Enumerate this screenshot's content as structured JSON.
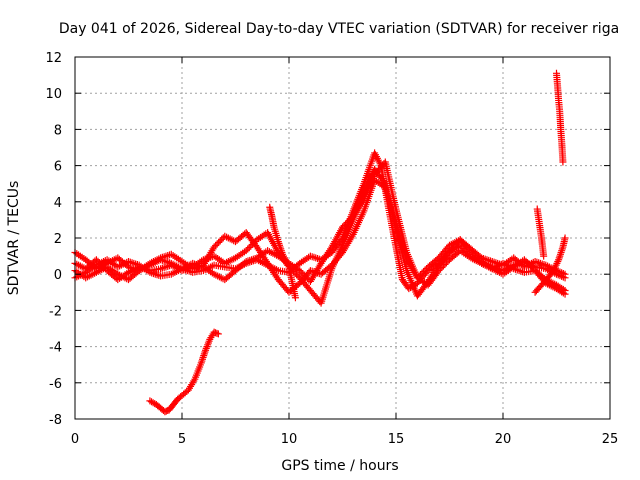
{
  "chart_data": {
    "type": "scatter",
    "title": "Day 041 of 2026, Sidereal Day-to-day VTEC variation (SDTVAR) for receiver riga",
    "xlabel": "GPS time / hours",
    "ylabel": "SDTVAR / TECUs",
    "xlim": [
      0,
      25
    ],
    "ylim": [
      -8,
      12
    ],
    "xticks": [
      0,
      5,
      10,
      15,
      20,
      25
    ],
    "yticks": [
      -8,
      -6,
      -4,
      -2,
      0,
      2,
      4,
      6,
      8,
      10,
      12
    ],
    "xtick_labels": [
      "0",
      "5",
      "10",
      "15",
      "20",
      "25"
    ],
    "ytick_labels": [
      "-8",
      "-6",
      "-4",
      "-2",
      "0",
      "2",
      "4",
      "6",
      "8",
      "10",
      "12"
    ],
    "grid": true,
    "marker": "plus",
    "color": "#ff0000",
    "series": [
      {
        "name": "track-1",
        "x": [
          0.0,
          0.5,
          1.0,
          1.5,
          2.0,
          2.5,
          3.0,
          3.5,
          4.0,
          4.5,
          5.0,
          5.5,
          6.0,
          6.5,
          7.0,
          7.5,
          8.0,
          8.5,
          9.0,
          9.5,
          10.0,
          10.5,
          11.0,
          11.5,
          12.0,
          12.5,
          13.0,
          13.5,
          14.0,
          14.3,
          14.6,
          15.0,
          15.3,
          15.6,
          16.0,
          16.5,
          17.0,
          17.5,
          18.0,
          18.5,
          19.0,
          19.5,
          20.0,
          20.5,
          21.0,
          21.5,
          22.0,
          22.5,
          22.9
        ],
        "y": [
          1.2,
          0.8,
          0.3,
          0.6,
          0.9,
          0.4,
          0.2,
          0.5,
          0.8,
          0.6,
          0.3,
          0.1,
          0.2,
          0.5,
          0.4,
          0.3,
          0.6,
          0.8,
          0.5,
          0.2,
          0.1,
          0.6,
          1.0,
          0.8,
          1.2,
          2.0,
          3.5,
          5.0,
          6.7,
          6.0,
          4.0,
          1.5,
          -0.3,
          -0.8,
          -0.5,
          0.2,
          0.6,
          1.2,
          1.9,
          1.3,
          0.7,
          0.4,
          0.2,
          0.5,
          0.7,
          0.4,
          0.3,
          0.0,
          -0.2
        ]
      },
      {
        "name": "track-2",
        "x": [
          0.0,
          0.5,
          1.0,
          1.5,
          2.0,
          2.5,
          3.0,
          3.5,
          4.0,
          4.5,
          5.0,
          5.5,
          6.0,
          6.5,
          7.0,
          7.5,
          8.0,
          8.5,
          9.0,
          9.5,
          10.0,
          10.5,
          11.0,
          11.5,
          12.0,
          12.5,
          13.0,
          13.5,
          14.0,
          14.5,
          15.0,
          15.5,
          16.0,
          16.5,
          17.0,
          17.5,
          18.0,
          18.5,
          19.0,
          19.5,
          20.0,
          20.5,
          21.0,
          21.5,
          22.0,
          22.5,
          22.9
        ],
        "y": [
          0.2,
          -0.2,
          0.1,
          0.4,
          0.0,
          -0.3,
          0.2,
          0.6,
          0.9,
          1.1,
          0.7,
          0.3,
          0.5,
          1.5,
          2.1,
          1.8,
          2.3,
          1.5,
          0.6,
          -0.3,
          -1.0,
          -0.5,
          0.2,
          0.0,
          0.5,
          1.2,
          2.2,
          3.5,
          5.2,
          4.8,
          2.5,
          0.2,
          -1.2,
          -0.4,
          0.5,
          1.2,
          1.6,
          1.0,
          0.6,
          0.3,
          0.0,
          0.4,
          0.8,
          0.2,
          -0.3,
          -0.6,
          -0.9
        ]
      },
      {
        "name": "track-3",
        "x": [
          0.0,
          0.5,
          1.0,
          1.5,
          2.0,
          2.5,
          3.0,
          3.5,
          4.0,
          4.5,
          5.0,
          5.5,
          6.0,
          6.5,
          7.0,
          7.5,
          8.0,
          8.5,
          9.0,
          9.5,
          10.0,
          10.5,
          11.0,
          11.5,
          12.0,
          12.5,
          13.0,
          13.5,
          14.0,
          14.5,
          15.0,
          15.5,
          16.0,
          16.5,
          17.0,
          17.5,
          18.0,
          18.5,
          19.0,
          19.5,
          20.0,
          20.5,
          21.0,
          21.5,
          22.0,
          22.5,
          22.9
        ],
        "y": [
          0.6,
          0.3,
          0.8,
          0.2,
          -0.3,
          0.1,
          0.4,
          0.2,
          0.3,
          0.5,
          0.2,
          0.4,
          0.8,
          1.0,
          0.6,
          0.9,
          1.3,
          1.9,
          2.3,
          1.2,
          0.4,
          -0.2,
          -0.9,
          -1.6,
          0.3,
          1.6,
          3.0,
          4.6,
          5.8,
          5.0,
          2.8,
          0.8,
          -0.2,
          0.4,
          0.9,
          1.6,
          1.9,
          1.4,
          0.9,
          0.7,
          0.5,
          0.9,
          0.4,
          0.7,
          0.5,
          0.2,
          0.0
        ]
      },
      {
        "name": "track-4",
        "x": [
          0.0,
          0.5,
          1.0,
          1.5,
          2.0,
          2.5,
          3.0,
          3.5,
          4.0,
          4.5,
          5.0,
          5.5,
          6.0,
          6.5,
          7.0,
          7.5,
          8.0,
          8.5,
          9.0,
          9.5,
          10.0,
          10.5,
          11.0,
          11.5,
          12.0,
          12.5,
          13.0,
          13.5,
          14.0,
          14.5,
          15.0,
          15.5,
          16.0,
          16.5,
          17.0,
          17.5,
          18.0,
          18.5,
          19.0,
          19.5,
          20.0,
          20.5,
          21.0,
          21.5,
          22.0,
          22.5,
          22.9
        ],
        "y": [
          -0.2,
          0.1,
          0.5,
          0.8,
          0.4,
          0.7,
          0.5,
          0.1,
          -0.1,
          0.0,
          0.3,
          0.6,
          0.4,
          0.0,
          -0.3,
          0.2,
          0.7,
          0.9,
          1.3,
          1.0,
          0.6,
          0.2,
          -0.4,
          0.6,
          1.5,
          2.6,
          3.2,
          4.2,
          5.5,
          6.2,
          3.6,
          1.2,
          -0.2,
          -0.6,
          0.2,
          0.8,
          1.3,
          0.9,
          0.6,
          0.3,
          0.6,
          0.3,
          0.1,
          0.2,
          -0.5,
          -0.8,
          -1.1
        ]
      },
      {
        "name": "track-5",
        "x": [
          9.1,
          9.2,
          9.3,
          9.5,
          9.7,
          10.0,
          10.3
        ],
        "y": [
          3.7,
          3.2,
          2.6,
          1.8,
          1.1,
          0.4,
          -1.3
        ]
      },
      {
        "name": "track-6",
        "x": [
          3.5,
          3.8,
          4.0,
          4.2,
          4.4,
          4.6,
          4.8,
          5.0,
          5.3,
          5.6,
          5.9,
          6.1,
          6.3,
          6.5,
          6.7
        ],
        "y": [
          -7.0,
          -7.2,
          -7.4,
          -7.6,
          -7.5,
          -7.2,
          -6.9,
          -6.7,
          -6.4,
          -5.8,
          -4.9,
          -4.2,
          -3.6,
          -3.2,
          -3.3
        ]
      },
      {
        "name": "track-7",
        "x": [
          22.5,
          22.55,
          22.6,
          22.65,
          22.7,
          22.75,
          22.8
        ],
        "y": [
          11.1,
          10.4,
          9.6,
          9.0,
          8.0,
          7.2,
          6.2
        ]
      },
      {
        "name": "track-8",
        "x": [
          21.6,
          21.7,
          21.8,
          21.9
        ],
        "y": [
          3.6,
          2.8,
          2.0,
          1.0
        ]
      },
      {
        "name": "track-9",
        "x": [
          21.5,
          21.8,
          22.1,
          22.4,
          22.6,
          22.8,
          22.9
        ],
        "y": [
          -1.0,
          -0.6,
          -0.2,
          0.3,
          0.8,
          1.5,
          2.0
        ]
      }
    ]
  }
}
